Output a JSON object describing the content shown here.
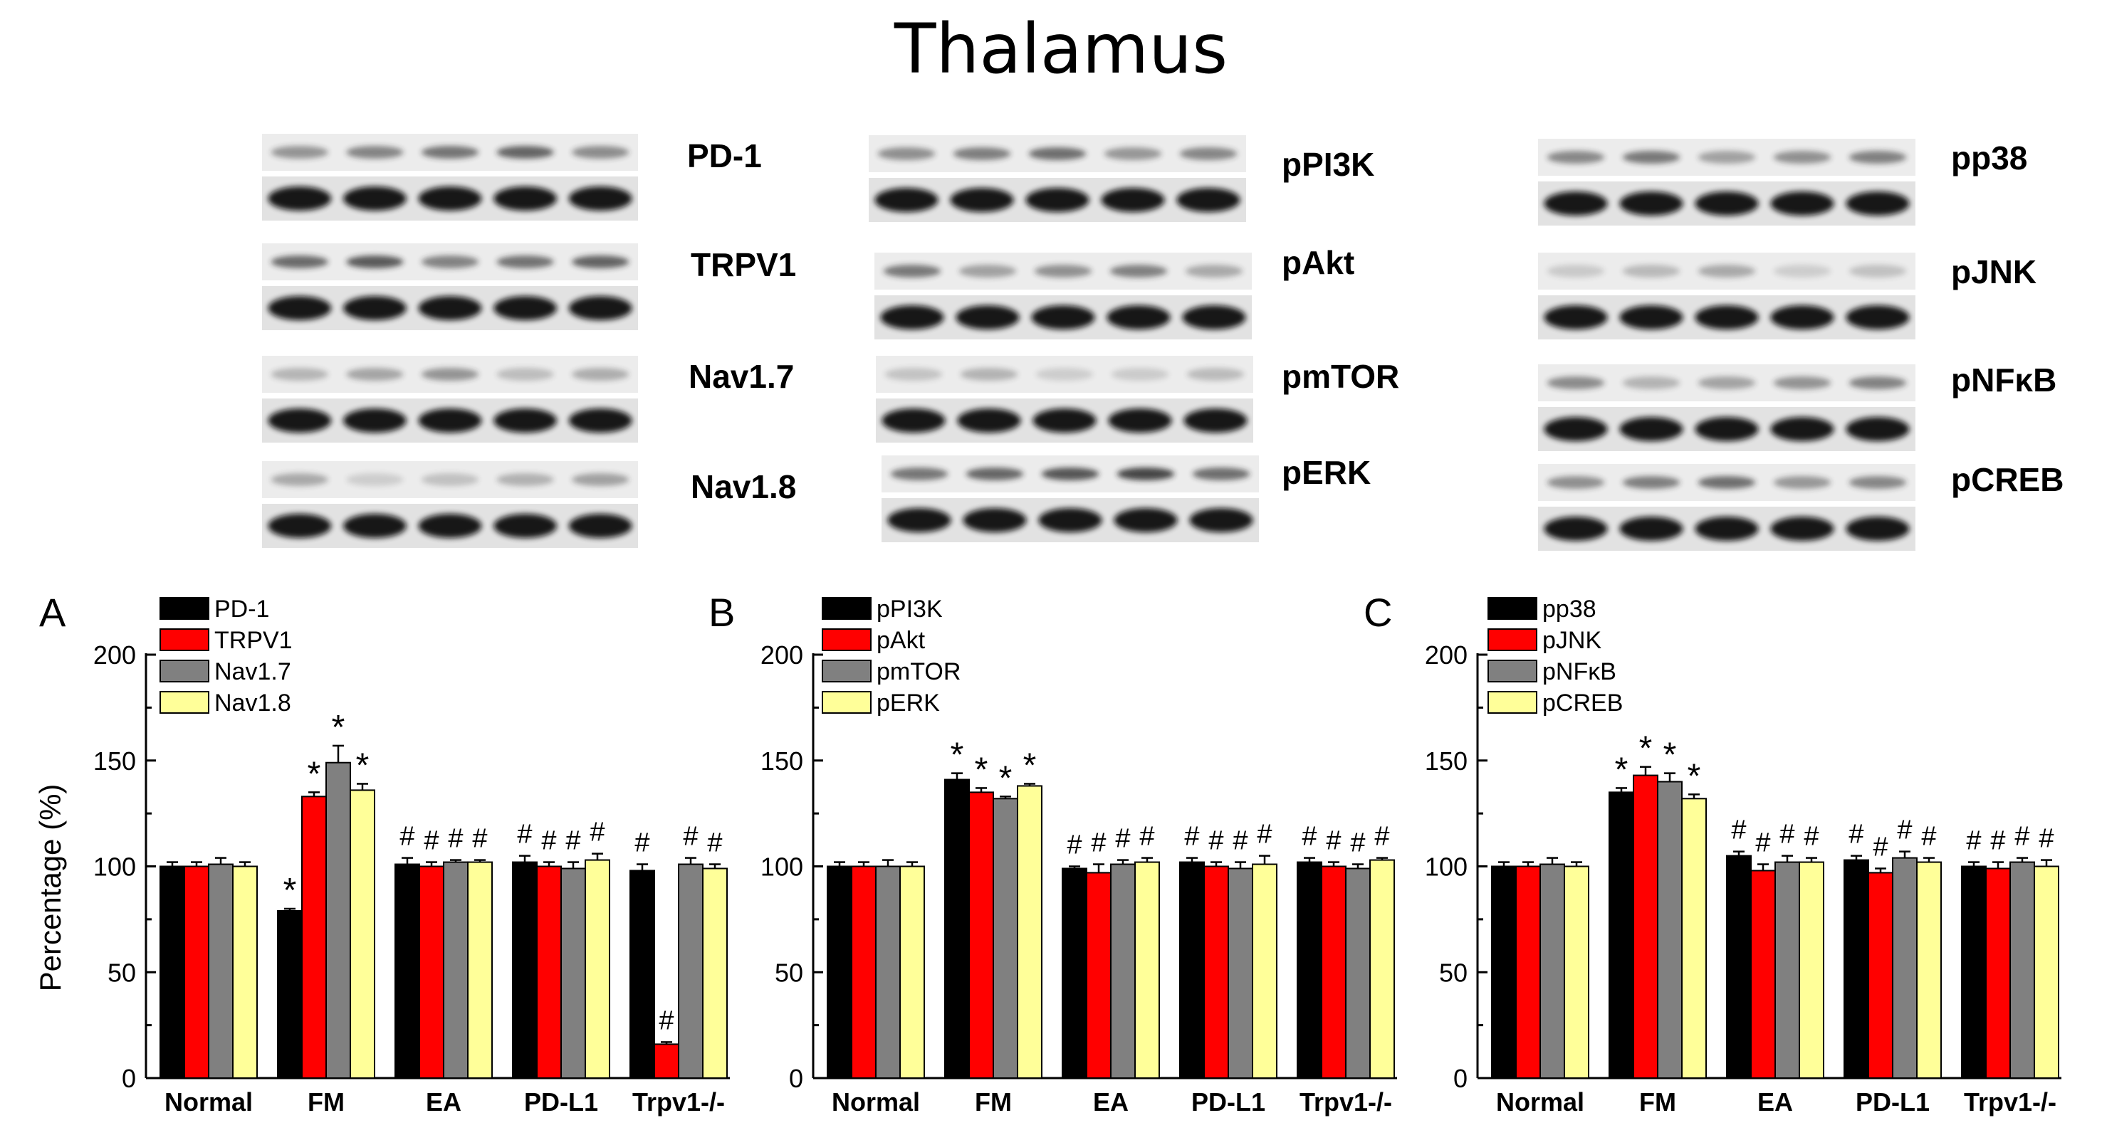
{
  "figure": {
    "title": "Thalamus"
  },
  "blots": [
    {
      "label": "PD-1",
      "lanes": 5
    },
    {
      "label": "TRPV1",
      "lanes": 5
    },
    {
      "label": "Nav1.7",
      "lanes": 5
    },
    {
      "label": "Nav1.8",
      "lanes": 5
    },
    {
      "label": "pPI3K",
      "lanes": 5
    },
    {
      "label": "pAkt",
      "lanes": 5
    },
    {
      "label": "pmTOR",
      "lanes": 5
    },
    {
      "label": "pERK",
      "lanes": 5
    },
    {
      "label": "pp38",
      "lanes": 5
    },
    {
      "label": "pJNK",
      "lanes": 5
    },
    {
      "label": "pNFκB",
      "lanes": 5
    },
    {
      "label": "pCREB",
      "lanes": 5
    }
  ],
  "colors": {
    "series1": "#000000",
    "series2": "#ff0000",
    "series3": "#808080",
    "series4": "#ffff99"
  },
  "chart_data": [
    {
      "type": "bar",
      "panel": "A",
      "title": "",
      "xlabel": "",
      "ylabel": "Percentage (%)",
      "ylim": [
        0,
        200
      ],
      "yticks": [
        0,
        50,
        100,
        150,
        200
      ],
      "legend": "top-left",
      "grid": false,
      "categories": [
        "Normal",
        "FM",
        "EA",
        "PD-L1",
        "Trpv1-/-"
      ],
      "series": [
        {
          "name": "PD-1",
          "color": "#000000",
          "values": [
            100,
            79,
            101,
            102,
            98
          ],
          "errors": [
            2,
            1,
            3,
            3,
            3
          ],
          "marks": [
            "",
            "*",
            "#",
            "#",
            "#"
          ]
        },
        {
          "name": "TRPV1",
          "color": "#ff0000",
          "values": [
            100,
            133,
            100,
            100,
            16
          ],
          "errors": [
            2,
            2,
            2,
            2,
            1
          ],
          "marks": [
            "",
            "*",
            "#",
            "#",
            "#"
          ]
        },
        {
          "name": "Nav1.7",
          "color": "#808080",
          "values": [
            101,
            149,
            102,
            99,
            101
          ],
          "errors": [
            3,
            8,
            1,
            3,
            3
          ],
          "marks": [
            "",
            "*",
            "#",
            "#",
            "#"
          ]
        },
        {
          "name": "Nav1.8",
          "color": "#ffff99",
          "values": [
            100,
            136,
            102,
            103,
            99
          ],
          "errors": [
            2,
            3,
            1,
            3,
            2
          ],
          "marks": [
            "",
            "*",
            "#",
            "#",
            "#"
          ]
        }
      ]
    },
    {
      "type": "bar",
      "panel": "B",
      "title": "",
      "xlabel": "",
      "ylabel": "",
      "ylim": [
        0,
        200
      ],
      "yticks": [
        0,
        50,
        100,
        150,
        200
      ],
      "legend": "top-left",
      "grid": false,
      "categories": [
        "Normal",
        "FM",
        "EA",
        "PD-L1",
        "Trpv1-/-"
      ],
      "series": [
        {
          "name": "pPI3K",
          "color": "#000000",
          "values": [
            100,
            141,
            99,
            102,
            102
          ],
          "errors": [
            2,
            3,
            1,
            2,
            2
          ],
          "marks": [
            "",
            "*",
            "#",
            "#",
            "#"
          ]
        },
        {
          "name": "pAkt",
          "color": "#ff0000",
          "values": [
            100,
            135,
            97,
            100,
            100
          ],
          "errors": [
            2,
            2,
            4,
            2,
            2
          ],
          "marks": [
            "",
            "*",
            "#",
            "#",
            "#"
          ]
        },
        {
          "name": "pmTOR",
          "color": "#808080",
          "values": [
            100,
            132,
            101,
            99,
            99
          ],
          "errors": [
            3,
            1,
            2,
            3,
            2
          ],
          "marks": [
            "",
            "*",
            "#",
            "#",
            "#"
          ]
        },
        {
          "name": "pERK",
          "color": "#ffff99",
          "values": [
            100,
            138,
            102,
            101,
            103
          ],
          "errors": [
            2,
            1,
            2,
            4,
            1
          ],
          "marks": [
            "",
            "*",
            "#",
            "#",
            "#"
          ]
        }
      ]
    },
    {
      "type": "bar",
      "panel": "C",
      "title": "",
      "xlabel": "",
      "ylabel": "",
      "ylim": [
        0,
        200
      ],
      "yticks": [
        0,
        50,
        100,
        150,
        200
      ],
      "legend": "top-left",
      "grid": false,
      "categories": [
        "Normal",
        "FM",
        "EA",
        "PD-L1",
        "Trpv1-/-"
      ],
      "series": [
        {
          "name": "pp38",
          "color": "#000000",
          "values": [
            100,
            135,
            105,
            103,
            100
          ],
          "errors": [
            2,
            2,
            2,
            2,
            2
          ],
          "marks": [
            "",
            "*",
            "#",
            "#",
            "#"
          ]
        },
        {
          "name": "pJNK",
          "color": "#ff0000",
          "values": [
            100,
            143,
            98,
            97,
            99
          ],
          "errors": [
            2,
            4,
            3,
            2,
            3
          ],
          "marks": [
            "",
            "*",
            "#",
            "#",
            "#"
          ]
        },
        {
          "name": "pNFκB",
          "color": "#808080",
          "values": [
            101,
            140,
            102,
            104,
            102
          ],
          "errors": [
            3,
            4,
            3,
            3,
            2
          ],
          "marks": [
            "",
            "*",
            "#",
            "#",
            "#"
          ]
        },
        {
          "name": "pCREB",
          "color": "#ffff99",
          "values": [
            100,
            132,
            102,
            102,
            100
          ],
          "errors": [
            2,
            2,
            2,
            2,
            3
          ],
          "marks": [
            "",
            "*",
            "#",
            "#",
            "#"
          ]
        }
      ]
    }
  ]
}
